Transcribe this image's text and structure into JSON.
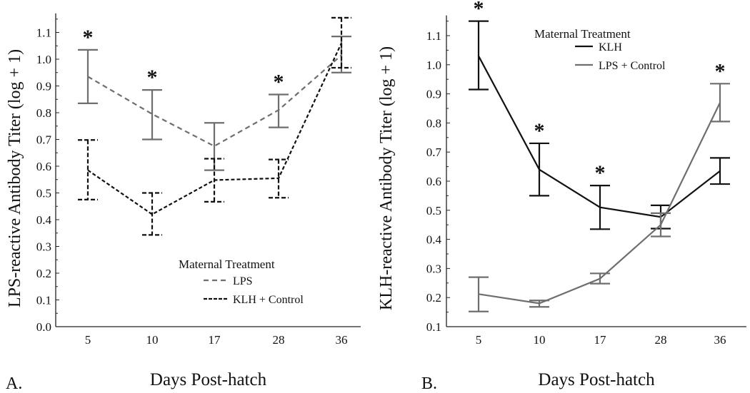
{
  "chart_data": [
    {
      "type": "line",
      "panel_label": "A.",
      "xlabel": "Days Post-hatch",
      "ylabel": "LPS-reactive Antibody Titer (log + 1)",
      "categories": [
        "5",
        "10",
        "17",
        "28",
        "36"
      ],
      "ylim": [
        0.0,
        1.15
      ],
      "yticks": [
        "0.0",
        "0.1",
        "0.2",
        "0.3",
        "0.4",
        "0.5",
        "0.6",
        "0.7",
        "0.8",
        "0.9",
        "1.0",
        "1.1"
      ],
      "legend": {
        "title": "Maternal Treatment",
        "placement": "bottom-right"
      },
      "significance_marker": "*",
      "significant_at": [
        "5",
        "10",
        "28"
      ],
      "series": [
        {
          "name": "LPS",
          "style": "dashed",
          "color": "#6e6e6e",
          "values": [
            0.935,
            0.795,
            0.675,
            0.81,
            1.015
          ],
          "lower": [
            0.835,
            0.7,
            0.585,
            0.745,
            0.95
          ],
          "upper": [
            1.035,
            0.885,
            0.762,
            0.868,
            1.085
          ]
        },
        {
          "name": "KLH + Control",
          "style": "dashed",
          "color": "#111111",
          "values": [
            0.585,
            0.42,
            0.548,
            0.555,
            1.06
          ],
          "lower": [
            0.475,
            0.343,
            0.467,
            0.482,
            0.968
          ],
          "upper": [
            0.698,
            0.5,
            0.628,
            0.625,
            1.155
          ]
        }
      ]
    },
    {
      "type": "line",
      "panel_label": "B.",
      "xlabel": "Days Post-hatch",
      "ylabel": "KLH-reactive Antibody Titer (log + 1)",
      "categories": [
        "5",
        "10",
        "17",
        "28",
        "36"
      ],
      "ylim": [
        0.1,
        1.15
      ],
      "yticks": [
        "0.1",
        "0.2",
        "0.3",
        "0.4",
        "0.5",
        "0.6",
        "0.7",
        "0.8",
        "0.9",
        "1.0",
        "1.1"
      ],
      "legend": {
        "title": "Maternal Treatment",
        "placement": "top-right"
      },
      "significance_marker": "*",
      "significant_at": [
        "5",
        "10",
        "17",
        "36"
      ],
      "series": [
        {
          "name": "KLH",
          "style": "solid",
          "color": "#111111",
          "values": [
            1.03,
            0.64,
            0.51,
            0.477,
            0.635
          ],
          "lower": [
            0.915,
            0.55,
            0.435,
            0.437,
            0.59
          ],
          "upper": [
            1.15,
            0.73,
            0.585,
            0.517,
            0.68
          ]
        },
        {
          "name": "LPS + Control",
          "style": "solid",
          "color": "#6e6e6e",
          "values": [
            0.212,
            0.18,
            0.265,
            0.45,
            0.87
          ],
          "lower": [
            0.152,
            0.168,
            0.248,
            0.41,
            0.805
          ],
          "upper": [
            0.27,
            0.19,
            0.283,
            0.49,
            0.935
          ]
        }
      ]
    }
  ]
}
